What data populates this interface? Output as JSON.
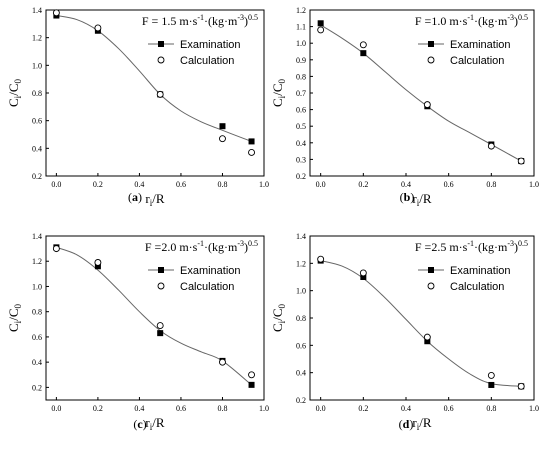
{
  "chart_data": [
    {
      "type": "scatter",
      "panel_label": "a",
      "annotation": {
        "prefix": "F = 1.5 m·s",
        "sup1": "-1",
        "mid": "·(kg·m",
        "sup2": "-3",
        "end": ")",
        "sup3": "0.5"
      },
      "xlabel": {
        "main": "r",
        "sub": "i",
        "tail": "/R"
      },
      "ylabel": {
        "main": "C",
        "sub": "i",
        "mid": "/C",
        "sub2": "0"
      },
      "xlim": [
        -0.05,
        1.0
      ],
      "ylim": [
        0.2,
        1.4
      ],
      "xticks": [
        "0.0",
        "0.2",
        "0.4",
        "0.6",
        "0.8",
        "1.0"
      ],
      "xtick_values": [
        0.0,
        0.2,
        0.4,
        0.6,
        0.8,
        1.0
      ],
      "yticks": [
        "0.2",
        "0.4",
        "0.6",
        "0.8",
        "1.0",
        "1.2",
        "1.4"
      ],
      "ytick_values": [
        0.2,
        0.4,
        0.6,
        0.8,
        1.0,
        1.2,
        1.4
      ],
      "legend_position": "top-right",
      "series": [
        {
          "name": "Examination",
          "x": [
            0.0,
            0.2,
            0.5,
            0.8,
            0.94
          ],
          "y": [
            1.36,
            1.25,
            0.79,
            0.56,
            0.45
          ]
        },
        {
          "name": "Calculation",
          "x": [
            0.0,
            0.2,
            0.5,
            0.8,
            0.94
          ],
          "y": [
            1.38,
            1.27,
            0.79,
            0.47,
            0.37
          ]
        }
      ],
      "fit_curve": {
        "x": [
          0.0,
          0.1,
          0.2,
          0.3,
          0.4,
          0.5,
          0.6,
          0.7,
          0.8,
          0.94
        ],
        "y": [
          1.36,
          1.33,
          1.25,
          1.12,
          0.96,
          0.79,
          0.67,
          0.59,
          0.53,
          0.45
        ]
      }
    },
    {
      "type": "scatter",
      "panel_label": "b",
      "annotation": {
        "prefix": "F =1.0 m·s",
        "sup1": "-1",
        "mid": "·(kg·m",
        "sup2": "-3",
        "end": ")",
        "sup3": "0.5"
      },
      "xlabel": {
        "main": "r",
        "sub": "i",
        "tail": "/R"
      },
      "ylabel": {
        "main": "C",
        "sub": "i",
        "mid": "/C",
        "sub2": "0"
      },
      "xlim": [
        -0.05,
        1.0
      ],
      "ylim": [
        0.2,
        1.2
      ],
      "xticks": [
        "0.0",
        "0.2",
        "0.4",
        "0.6",
        "0.8",
        "1.0"
      ],
      "xtick_values": [
        0.0,
        0.2,
        0.4,
        0.6,
        0.8,
        1.0
      ],
      "yticks": [
        "0.2",
        "0.3",
        "0.4",
        "0.5",
        "0.6",
        "0.7",
        "0.8",
        "0.9",
        "1.0",
        "1.1",
        "1.2"
      ],
      "ytick_values": [
        0.2,
        0.3,
        0.4,
        0.5,
        0.6,
        0.7,
        0.8,
        0.9,
        1.0,
        1.1,
        1.2
      ],
      "legend_position": "top-right",
      "series": [
        {
          "name": "Examination",
          "x": [
            0.0,
            0.2,
            0.5,
            0.8,
            0.94
          ],
          "y": [
            1.12,
            0.94,
            0.62,
            0.39,
            0.29
          ]
        },
        {
          "name": "Calculation",
          "x": [
            0.0,
            0.2,
            0.5,
            0.8,
            0.94
          ],
          "y": [
            1.08,
            0.99,
            0.63,
            0.38,
            0.29
          ]
        }
      ],
      "fit_curve": {
        "x": [
          0.0,
          0.1,
          0.2,
          0.3,
          0.4,
          0.5,
          0.6,
          0.7,
          0.8,
          0.94
        ],
        "y": [
          1.11,
          1.03,
          0.94,
          0.83,
          0.72,
          0.62,
          0.53,
          0.46,
          0.39,
          0.29
        ]
      }
    },
    {
      "type": "scatter",
      "panel_label": "c",
      "annotation": {
        "prefix": "F =2.0 m·s",
        "sup1": "-1",
        "mid": "·(kg·m",
        "sup2": "-3",
        "end": ")",
        "sup3": "0.5"
      },
      "xlabel": {
        "main": "r",
        "sub": "i",
        "tail": "/R"
      },
      "ylabel": {
        "main": "C",
        "sub": "i",
        "mid": "/C",
        "sub2": "0"
      },
      "xlim": [
        -0.05,
        1.0
      ],
      "ylim": [
        0.1,
        1.4
      ],
      "xticks": [
        "0.0",
        "0.2",
        "0.4",
        "0.6",
        "0.8",
        "1.0"
      ],
      "xtick_values": [
        0.0,
        0.2,
        0.4,
        0.6,
        0.8,
        1.0
      ],
      "yticks": [
        "0.2",
        "0.4",
        "0.6",
        "0.8",
        "1.0",
        "1.2",
        "1.4"
      ],
      "ytick_values": [
        0.2,
        0.4,
        0.6,
        0.8,
        1.0,
        1.2,
        1.4
      ],
      "legend_position": "top-right",
      "series": [
        {
          "name": "Examination",
          "x": [
            0.0,
            0.2,
            0.5,
            0.8,
            0.94
          ],
          "y": [
            1.31,
            1.16,
            0.63,
            0.41,
            0.22
          ]
        },
        {
          "name": "Calculation",
          "x": [
            0.0,
            0.2,
            0.5,
            0.8,
            0.94
          ],
          "y": [
            1.3,
            1.19,
            0.69,
            0.4,
            0.3
          ]
        }
      ],
      "fit_curve": {
        "x": [
          0.0,
          0.1,
          0.2,
          0.3,
          0.4,
          0.5,
          0.6,
          0.7,
          0.8,
          0.94
        ],
        "y": [
          1.31,
          1.25,
          1.13,
          0.97,
          0.8,
          0.65,
          0.55,
          0.48,
          0.41,
          0.22
        ]
      }
    },
    {
      "type": "scatter",
      "panel_label": "d",
      "annotation": {
        "prefix": "F =2.5 m·s",
        "sup1": "-1",
        "mid": "·(kg·m",
        "sup2": "-3",
        "end": ")",
        "sup3": "0.5"
      },
      "xlabel": {
        "main": "r",
        "sub": "i",
        "tail": "/R"
      },
      "ylabel": {
        "main": "C",
        "sub": "i",
        "mid": "/C",
        "sub2": "0"
      },
      "xlim": [
        -0.05,
        1.0
      ],
      "ylim": [
        0.2,
        1.4
      ],
      "xticks": [
        "0.0",
        "0.2",
        "0.4",
        "0.6",
        "0.8",
        "1.0"
      ],
      "xtick_values": [
        0.0,
        0.2,
        0.4,
        0.6,
        0.8,
        1.0
      ],
      "yticks": [
        "0.2",
        "0.4",
        "0.6",
        "0.8",
        "1.0",
        "1.2",
        "1.4"
      ],
      "ytick_values": [
        0.2,
        0.4,
        0.6,
        0.8,
        1.0,
        1.2,
        1.4
      ],
      "legend_position": "top-right",
      "series": [
        {
          "name": "Examination",
          "x": [
            0.0,
            0.2,
            0.5,
            0.8,
            0.94
          ],
          "y": [
            1.22,
            1.1,
            0.63,
            0.31,
            0.3
          ]
        },
        {
          "name": "Calculation",
          "x": [
            0.0,
            0.2,
            0.5,
            0.8,
            0.94
          ],
          "y": [
            1.23,
            1.13,
            0.66,
            0.38,
            0.3
          ]
        }
      ],
      "fit_curve": {
        "x": [
          0.0,
          0.1,
          0.2,
          0.3,
          0.4,
          0.5,
          0.6,
          0.7,
          0.8,
          0.94
        ],
        "y": [
          1.22,
          1.18,
          1.09,
          0.95,
          0.79,
          0.63,
          0.5,
          0.39,
          0.32,
          0.3
        ]
      }
    }
  ]
}
